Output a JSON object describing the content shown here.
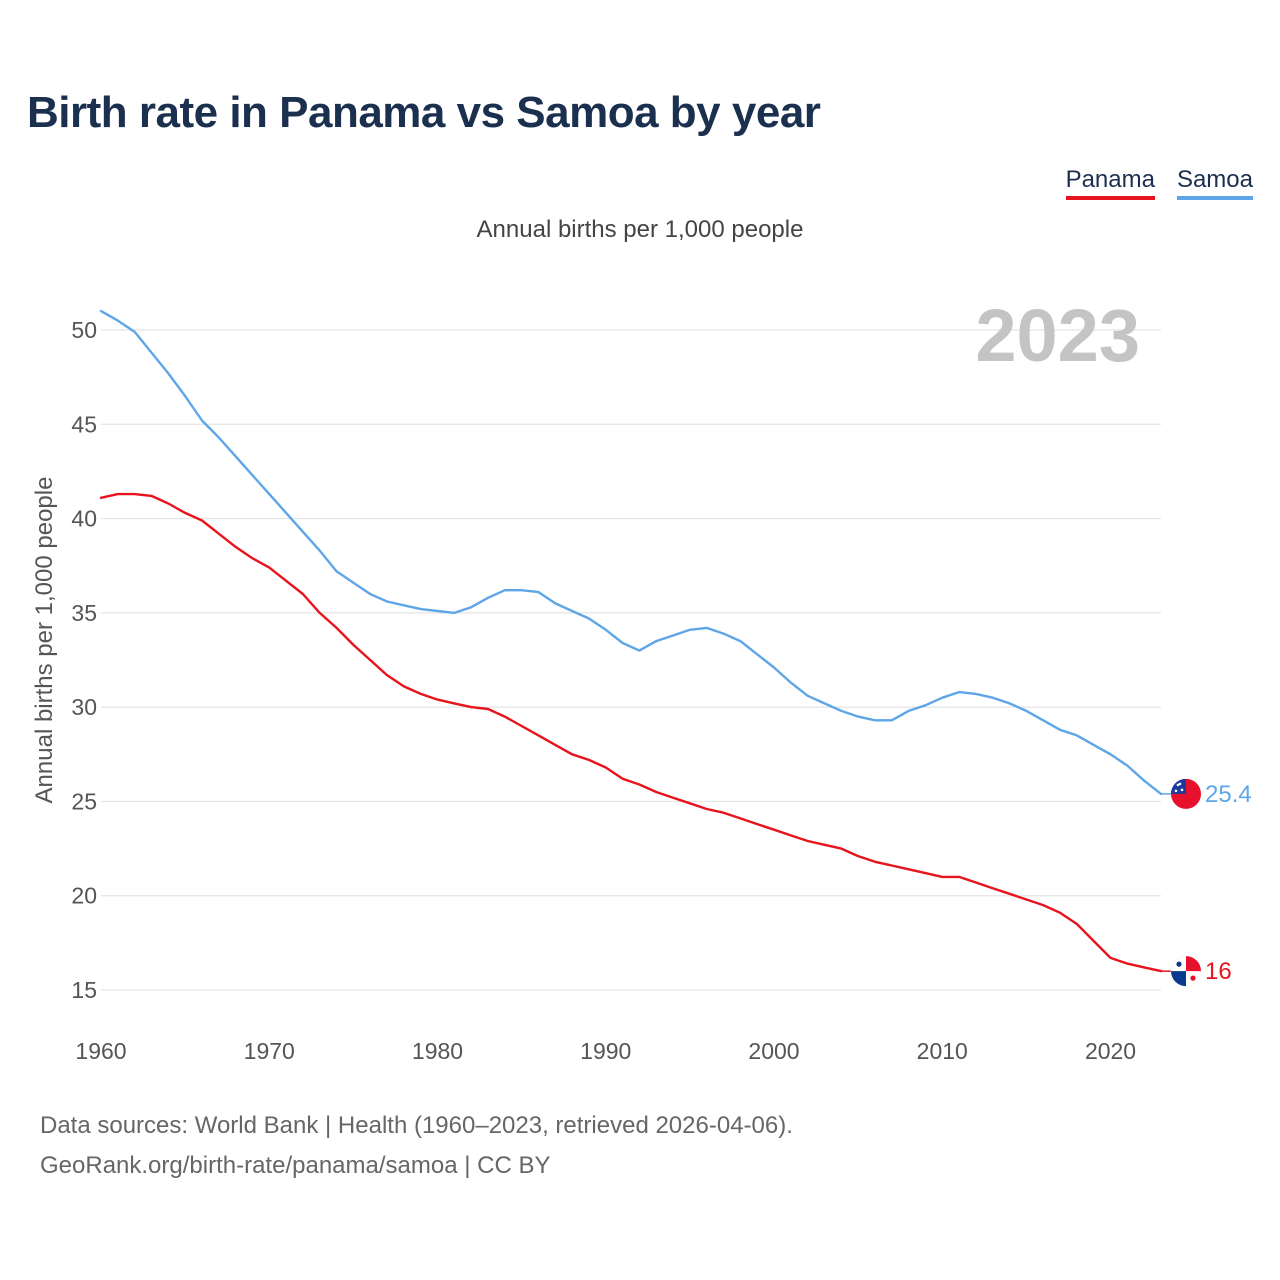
{
  "title": "Birth rate in Panama vs Samoa by year",
  "subtitle": "Annual births per 1,000 people",
  "legend": [
    {
      "name": "Panama",
      "color": "#e8141d"
    },
    {
      "name": "Samoa",
      "color": "#5fa6e8"
    }
  ],
  "source": {
    "line1": "Data sources: World Bank | Health (1960–2023, retrieved 2026-04-06).",
    "line2": "GeoRank.org/birth-rate/panama/samoa | CC BY"
  },
  "chart_data": {
    "type": "line",
    "title": "Birth rate in Panama vs Samoa by year",
    "ylabel": "Annual births per 1,000 people",
    "xlabel": "",
    "year_label": "2023",
    "xlim": [
      1960,
      2023
    ],
    "ylim": [
      14,
      52
    ],
    "x_ticks": [
      1960,
      1970,
      1980,
      1990,
      2000,
      2010,
      2020
    ],
    "y_ticks": [
      15,
      20,
      25,
      30,
      35,
      40,
      45,
      50
    ],
    "grid": true,
    "x": [
      1960,
      1961,
      1962,
      1963,
      1964,
      1965,
      1966,
      1967,
      1968,
      1969,
      1970,
      1971,
      1972,
      1973,
      1974,
      1975,
      1976,
      1977,
      1978,
      1979,
      1980,
      1981,
      1982,
      1983,
      1984,
      1985,
      1986,
      1987,
      1988,
      1989,
      1990,
      1991,
      1992,
      1993,
      1994,
      1995,
      1996,
      1997,
      1998,
      1999,
      2000,
      2001,
      2002,
      2003,
      2004,
      2005,
      2006,
      2007,
      2008,
      2009,
      2010,
      2011,
      2012,
      2013,
      2014,
      2015,
      2016,
      2017,
      2018,
      2019,
      2020,
      2021,
      2022,
      2023
    ],
    "series": [
      {
        "name": "Panama",
        "color": "#e8141d",
        "end_label": "16",
        "values": [
          41.1,
          41.3,
          41.3,
          41.2,
          40.8,
          40.3,
          39.9,
          39.2,
          38.5,
          37.9,
          37.4,
          36.7,
          36.0,
          35.0,
          34.2,
          33.3,
          32.5,
          31.7,
          31.1,
          30.7,
          30.4,
          30.2,
          30.0,
          29.9,
          29.5,
          29.0,
          28.5,
          28.0,
          27.5,
          27.2,
          26.8,
          26.2,
          25.9,
          25.5,
          25.2,
          24.9,
          24.6,
          24.4,
          24.1,
          23.8,
          23.5,
          23.2,
          22.9,
          22.7,
          22.5,
          22.1,
          21.8,
          21.6,
          21.4,
          21.2,
          21.0,
          21.0,
          20.7,
          20.4,
          20.1,
          19.8,
          19.5,
          19.1,
          18.5,
          17.6,
          16.7,
          16.4,
          16.2,
          16.0
        ]
      },
      {
        "name": "Samoa",
        "color": "#5fa6e8",
        "end_label": "25.4",
        "values": [
          51.0,
          50.5,
          49.9,
          48.8,
          47.7,
          46.5,
          45.2,
          44.3,
          43.3,
          42.3,
          41.3,
          40.3,
          39.3,
          38.3,
          37.2,
          36.6,
          36.0,
          35.6,
          35.4,
          35.2,
          35.1,
          35.0,
          35.3,
          35.8,
          36.2,
          36.2,
          36.1,
          35.5,
          35.1,
          34.7,
          34.1,
          33.4,
          33.0,
          33.5,
          33.8,
          34.1,
          34.2,
          33.9,
          33.5,
          32.8,
          32.1,
          31.3,
          30.6,
          30.2,
          29.8,
          29.5,
          29.3,
          29.3,
          29.8,
          30.1,
          30.5,
          30.8,
          30.7,
          30.5,
          30.2,
          29.8,
          29.3,
          28.8,
          28.5,
          28.0,
          27.5,
          26.9,
          26.1,
          25.4
        ]
      }
    ]
  }
}
